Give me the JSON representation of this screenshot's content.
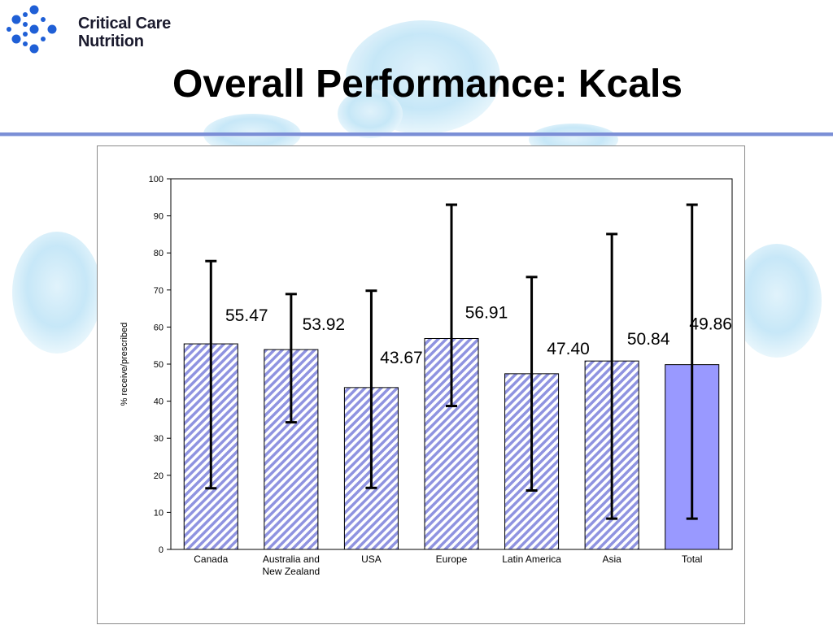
{
  "logo": {
    "line1": "Critical Care",
    "line2": "Nutrition",
    "mark_icon": "dot-cluster-icon",
    "mark_color": "#1f5fd6"
  },
  "slide": {
    "title": "Overall Performance: Kcals"
  },
  "colors": {
    "bar_stroke": "#000000",
    "hatch_stripe": "#8f93e0",
    "hatch_bg": "#ffffff",
    "total_fill": "#9999ff",
    "error_bar": "#000000",
    "title_rule": "#7b8fd6"
  },
  "chart_data": {
    "type": "bar",
    "ylabel": "% receive/prescribed",
    "xlabel": "",
    "ylim": [
      0,
      100
    ],
    "yticks": [
      0,
      10,
      20,
      30,
      40,
      50,
      60,
      70,
      80,
      90,
      100
    ],
    "grid": false,
    "categories": [
      "Canada",
      "Australia and New Zealand",
      "USA",
      "Europe",
      "Latin America",
      "Asia",
      "Total"
    ],
    "values": [
      55.47,
      53.92,
      43.67,
      56.91,
      47.4,
      50.84,
      49.86
    ],
    "data_labels": [
      "55.47",
      "53.92",
      "43.67",
      "56.91",
      "47.40",
      "50.84",
      "49.86"
    ],
    "error_low": [
      16.5,
      34.3,
      16.6,
      38.7,
      15.9,
      8.3,
      8.3
    ],
    "error_high": [
      77.8,
      68.9,
      69.8,
      93.0,
      73.5,
      85.1,
      93.0
    ],
    "styles": [
      "hatched",
      "hatched",
      "hatched",
      "hatched",
      "hatched",
      "hatched",
      "solid"
    ]
  }
}
